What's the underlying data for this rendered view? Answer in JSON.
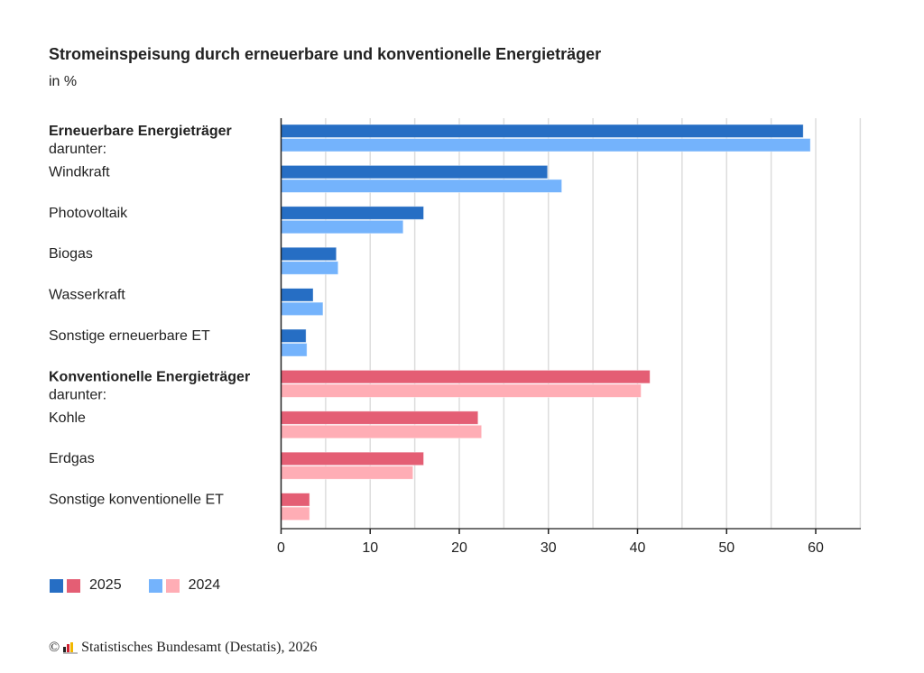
{
  "header": {
    "title": "Stromeinspeisung durch erneuerbare und konventionelle Energieträger",
    "subtitle": "in %"
  },
  "chart_data": {
    "type": "bar",
    "orientation": "horizontal",
    "title": "Stromeinspeisung durch erneuerbare und konventionelle Energieträger",
    "subtitle": "in %",
    "xlabel": "",
    "ylabel": "",
    "xlim": [
      0,
      65
    ],
    "xticks": [
      0,
      10,
      20,
      30,
      40,
      50,
      60
    ],
    "grid": "vertical every 5",
    "legend_position": "bottom-left",
    "categories": [
      {
        "label": "Erneuerbare Energieträger",
        "sublabel": "darunter:",
        "bold": true,
        "group": "renewable"
      },
      {
        "label": "Windkraft",
        "bold": false,
        "group": "renewable"
      },
      {
        "label": "Photovoltaik",
        "bold": false,
        "group": "renewable"
      },
      {
        "label": "Biogas",
        "bold": false,
        "group": "renewable"
      },
      {
        "label": "Wasserkraft",
        "bold": false,
        "group": "renewable"
      },
      {
        "label": "Sonstige erneuerbare ET",
        "bold": false,
        "group": "renewable"
      },
      {
        "label": "Konventionelle Energieträger",
        "sublabel": "darunter:",
        "bold": true,
        "group": "conventional"
      },
      {
        "label": "Kohle",
        "bold": false,
        "group": "conventional"
      },
      {
        "label": "Erdgas",
        "bold": false,
        "group": "conventional"
      },
      {
        "label": "Sonstige konventionelle ET",
        "bold": false,
        "group": "conventional"
      }
    ],
    "series": [
      {
        "name": "2025",
        "values": [
          58.6,
          29.9,
          16.0,
          6.2,
          3.6,
          2.8,
          41.4,
          22.1,
          16.0,
          3.2
        ],
        "colors": {
          "renewable": "#266ec4",
          "conventional": "#e45e74"
        }
      },
      {
        "name": "2024",
        "values": [
          59.4,
          31.5,
          13.7,
          6.4,
          4.7,
          2.9,
          40.4,
          22.5,
          14.8,
          3.2
        ],
        "colors": {
          "renewable": "#74b3fc",
          "conventional": "#ffadb5"
        }
      }
    ]
  },
  "legend": [
    {
      "label": "2025",
      "colors": [
        "#266ec4",
        "#e45e74"
      ]
    },
    {
      "label": "2024",
      "colors": [
        "#74b3fc",
        "#ffadb5"
      ]
    }
  ],
  "footer": {
    "copyright_symbol": "©",
    "source": "Statistisches Bundesamt (Destatis), 2026"
  }
}
